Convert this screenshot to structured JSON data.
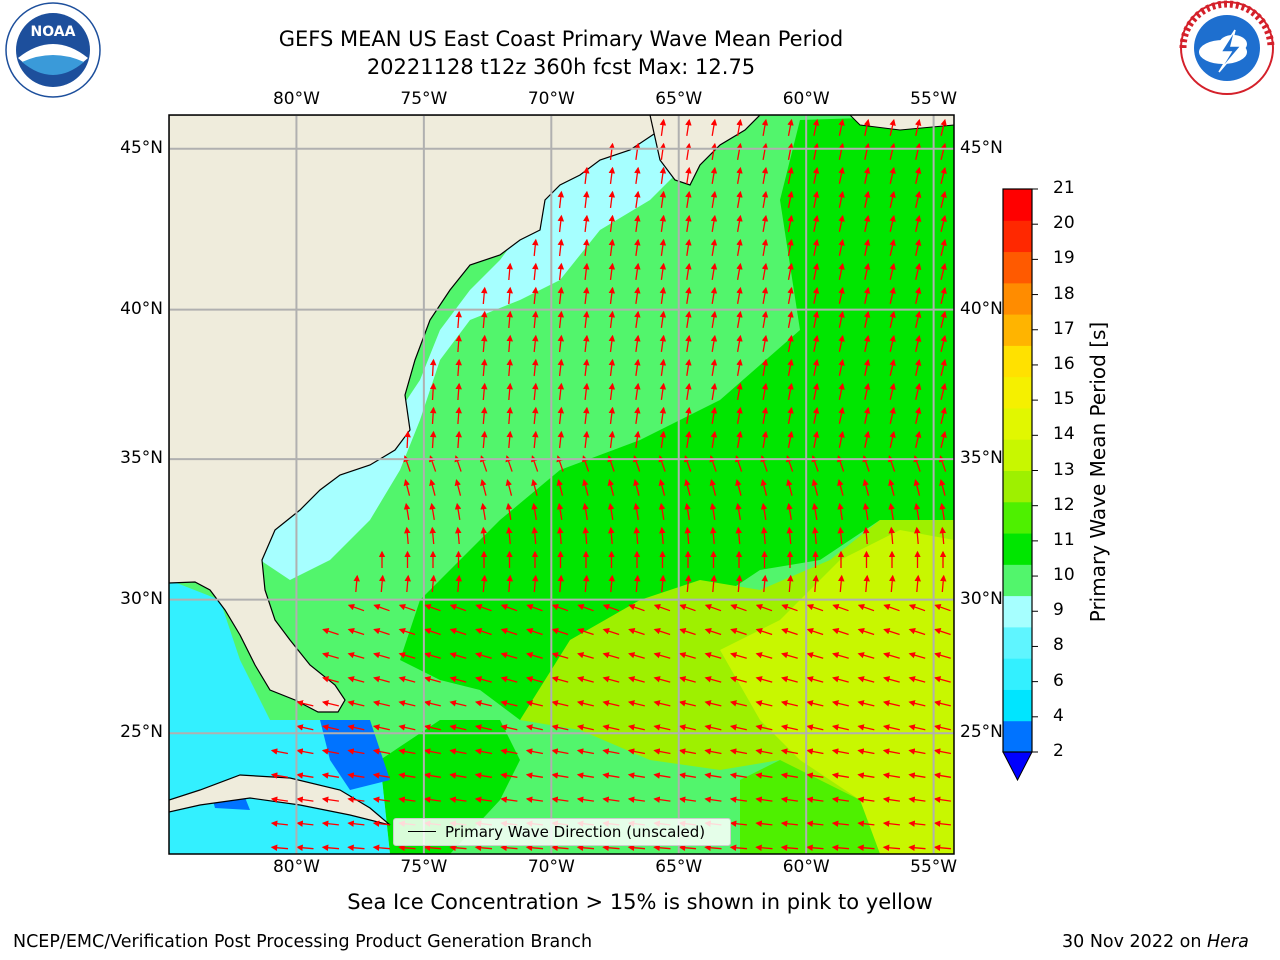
{
  "header": {
    "title_line1": "GEFS MEAN US East Coast Primary Wave Mean Period",
    "title_line2": "20221128 t12z 360h fcst   Max: 12.75"
  },
  "logos": {
    "left": "NOAA",
    "left_ring_text": "NATIONAL OCEANIC AND ATMOSPHERIC ADMINISTRATION · U.S. DEPARTMENT OF COMMERCE",
    "right_ring_text": "NATIONAL WEATHER SERVICE"
  },
  "map": {
    "lon_labels": [
      "80°W",
      "75°W",
      "70°W",
      "65°W",
      "60°W",
      "55°W"
    ],
    "lat_labels": [
      "45°N",
      "40°N",
      "35°N",
      "30°N",
      "25°N"
    ],
    "lon_values": [
      -80,
      -75,
      -70,
      -65,
      -60,
      -55
    ],
    "lat_values": [
      45,
      40,
      35,
      30,
      25
    ],
    "extent": {
      "lon_min": -85,
      "lon_max": -54.2,
      "lat_min": 20.3,
      "lat_max": 46
    },
    "legend_label": "Primary Wave Direction (unscaled)",
    "arrow_color": "#ff0000",
    "land_color": "#efecdc",
    "grid_color": "#b0b0b0"
  },
  "colorbar": {
    "title": "Primary Wave Mean Period [s]",
    "ticks": [
      "21",
      "20",
      "19",
      "18",
      "17",
      "16",
      "15",
      "14",
      "13",
      "12",
      "11",
      "10",
      "9",
      "8",
      "6",
      "4",
      "2"
    ],
    "colors_bottom_to_top": [
      "#0073ff",
      "#00e5ff",
      "#33f0ff",
      "#5ff5ff",
      "#a6ffff",
      "#52f56c",
      "#00e600",
      "#4ef000",
      "#9ef000",
      "#c8f700",
      "#e1f700",
      "#f5f000",
      "#ffe100",
      "#ffb400",
      "#ff8c00",
      "#ff5a00",
      "#ff2800",
      "#ff0000"
    ],
    "extend_color": "#0000ff"
  },
  "footer": {
    "note": "Sea Ice Concentration > 15% is shown in pink to yellow",
    "left": "NCEP/EMC/Verification Post Processing Product Generation Branch",
    "right_date": "30 Nov 2022 on ",
    "right_host": "Hera"
  }
}
